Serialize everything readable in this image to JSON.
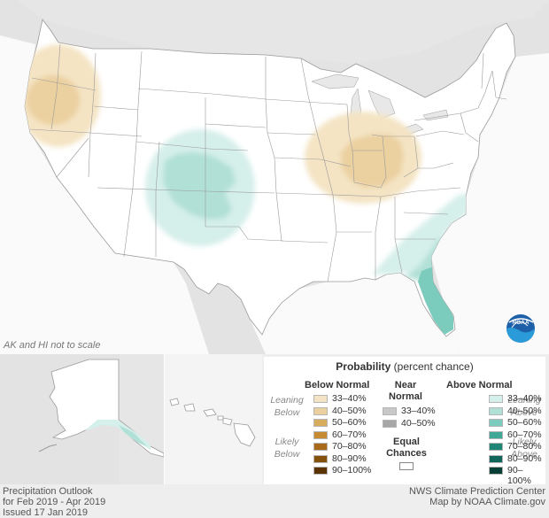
{
  "map_note": "AK and HI not to scale",
  "legend": {
    "title_bold": "Probability",
    "title_rest": " (percent chance)",
    "below_header": "Below Normal",
    "near_header_1": "Near",
    "near_header_2": "Normal",
    "above_header": "Above Normal",
    "leaning_below_1": "Leaning",
    "leaning_below_2": "Below",
    "likely_below_1": "Likely",
    "likely_below_2": "Below",
    "leaning_above_1": "Leaning",
    "leaning_above_2": "Above",
    "likely_above_1": "Likely",
    "likely_above_2": "Above",
    "equal_1": "Equal",
    "equal_2": "Chances",
    "below_bins": [
      {
        "label": "33–40%",
        "color": "#f4e4c4"
      },
      {
        "label": "40–50%",
        "color": "#ebd0a0"
      },
      {
        "label": "50–60%",
        "color": "#d8ac5d"
      },
      {
        "label": "60–70%",
        "color": "#c68a33"
      },
      {
        "label": "70–80%",
        "color": "#a86918"
      },
      {
        "label": "80–90%",
        "color": "#855009"
      },
      {
        "label": "90–100%",
        "color": "#5a3300"
      }
    ],
    "near_bins": [
      {
        "label": "33–40%",
        "color": "#c8c8c8"
      },
      {
        "label": "40–50%",
        "color": "#a7a7a7"
      }
    ],
    "above_bins": [
      {
        "label": "33–40%",
        "color": "#d5efea"
      },
      {
        "label": "40–50%",
        "color": "#b1e0d6"
      },
      {
        "label": "50–60%",
        "color": "#7cccbe"
      },
      {
        "label": "60–70%",
        "color": "#3fa897"
      },
      {
        "label": "70–80%",
        "color": "#1f8676"
      },
      {
        "label": "80–90%",
        "color": "#10665a"
      },
      {
        "label": "90–100%",
        "color": "#063d35"
      }
    ]
  },
  "credit_left": {
    "line1": "Precipitation Outlook",
    "line2": "for Feb 2019 - Apr 2019",
    "line3": "Issued 17 Jan 2019"
  },
  "credit_right": {
    "line1": "NWS Climate Prediction Center",
    "line2": "Map by NOAA Climate.gov"
  },
  "logo_text": "NOAA"
}
